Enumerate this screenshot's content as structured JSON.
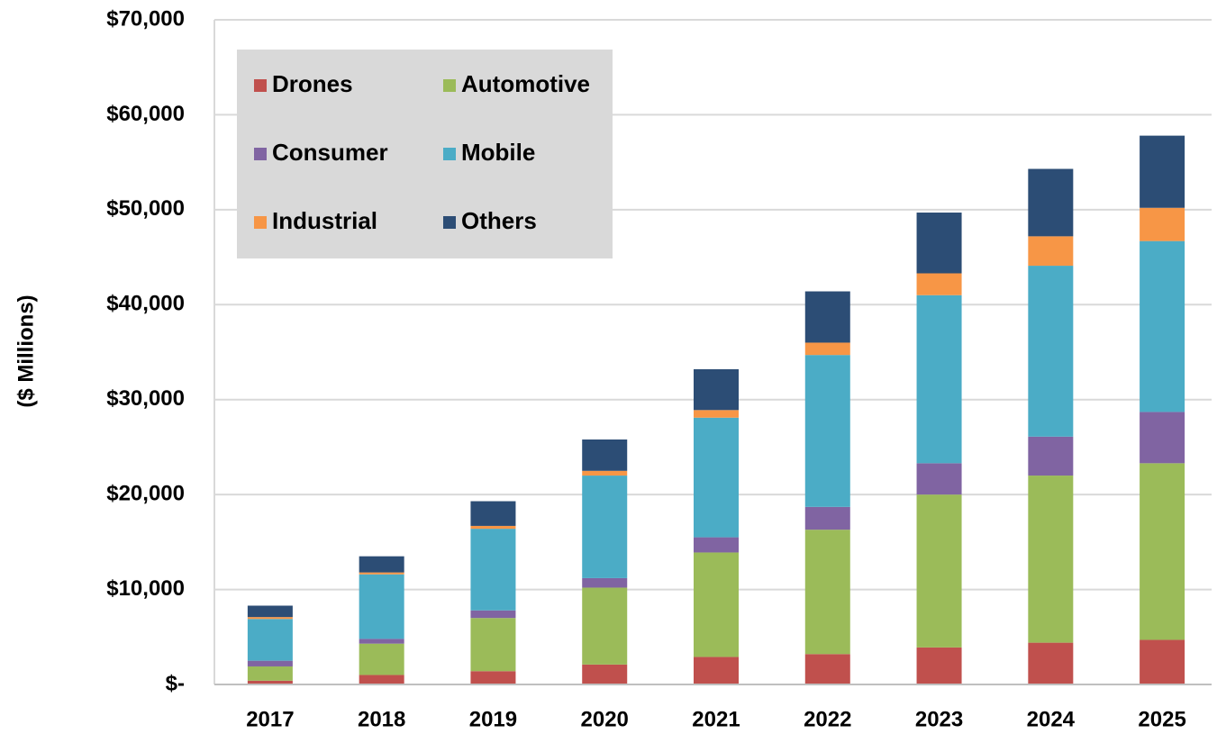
{
  "chart_data": {
    "type": "stacked-bar",
    "y_label": "($ Millions)",
    "categories": [
      "2017",
      "2018",
      "2019",
      "2020",
      "2021",
      "2022",
      "2023",
      "2024",
      "2025"
    ],
    "series": [
      {
        "name": "Drones",
        "color": "#c0504d",
        "values": [
          400,
          1000,
          1400,
          2100,
          2900,
          3200,
          3900,
          4400,
          4700
        ]
      },
      {
        "name": "Automotive",
        "color": "#9bbb59",
        "values": [
          1500,
          3300,
          5600,
          8100,
          11000,
          13100,
          16100,
          17600,
          18600
        ]
      },
      {
        "name": "Consumer",
        "color": "#8064a2",
        "values": [
          600,
          500,
          800,
          1000,
          1600,
          2400,
          3300,
          4100,
          5400
        ]
      },
      {
        "name": "Mobile",
        "color": "#4bacc6",
        "values": [
          4400,
          6800,
          8600,
          10800,
          12600,
          16000,
          17700,
          18000,
          18000
        ]
      },
      {
        "name": "Industrial",
        "color": "#f79646",
        "values": [
          200,
          200,
          300,
          500,
          800,
          1300,
          2300,
          3100,
          3500
        ]
      },
      {
        "name": "Others",
        "color": "#2c4d75",
        "values": [
          1200,
          1700,
          2600,
          3300,
          4300,
          5400,
          6400,
          7100,
          7600
        ]
      }
    ],
    "ylim": [
      0,
      70000
    ],
    "yticks": [
      {
        "value": 0,
        "label": "$-"
      },
      {
        "value": 10000,
        "label": "$10,000"
      },
      {
        "value": 20000,
        "label": "$20,000"
      },
      {
        "value": 30000,
        "label": "$30,000"
      },
      {
        "value": 40000,
        "label": "$40,000"
      },
      {
        "value": 50000,
        "label": "$50,000"
      },
      {
        "value": 60000,
        "label": "$60,000"
      },
      {
        "value": 70000,
        "label": "$70,000"
      }
    ],
    "grid": true,
    "legend": "upper-left"
  }
}
